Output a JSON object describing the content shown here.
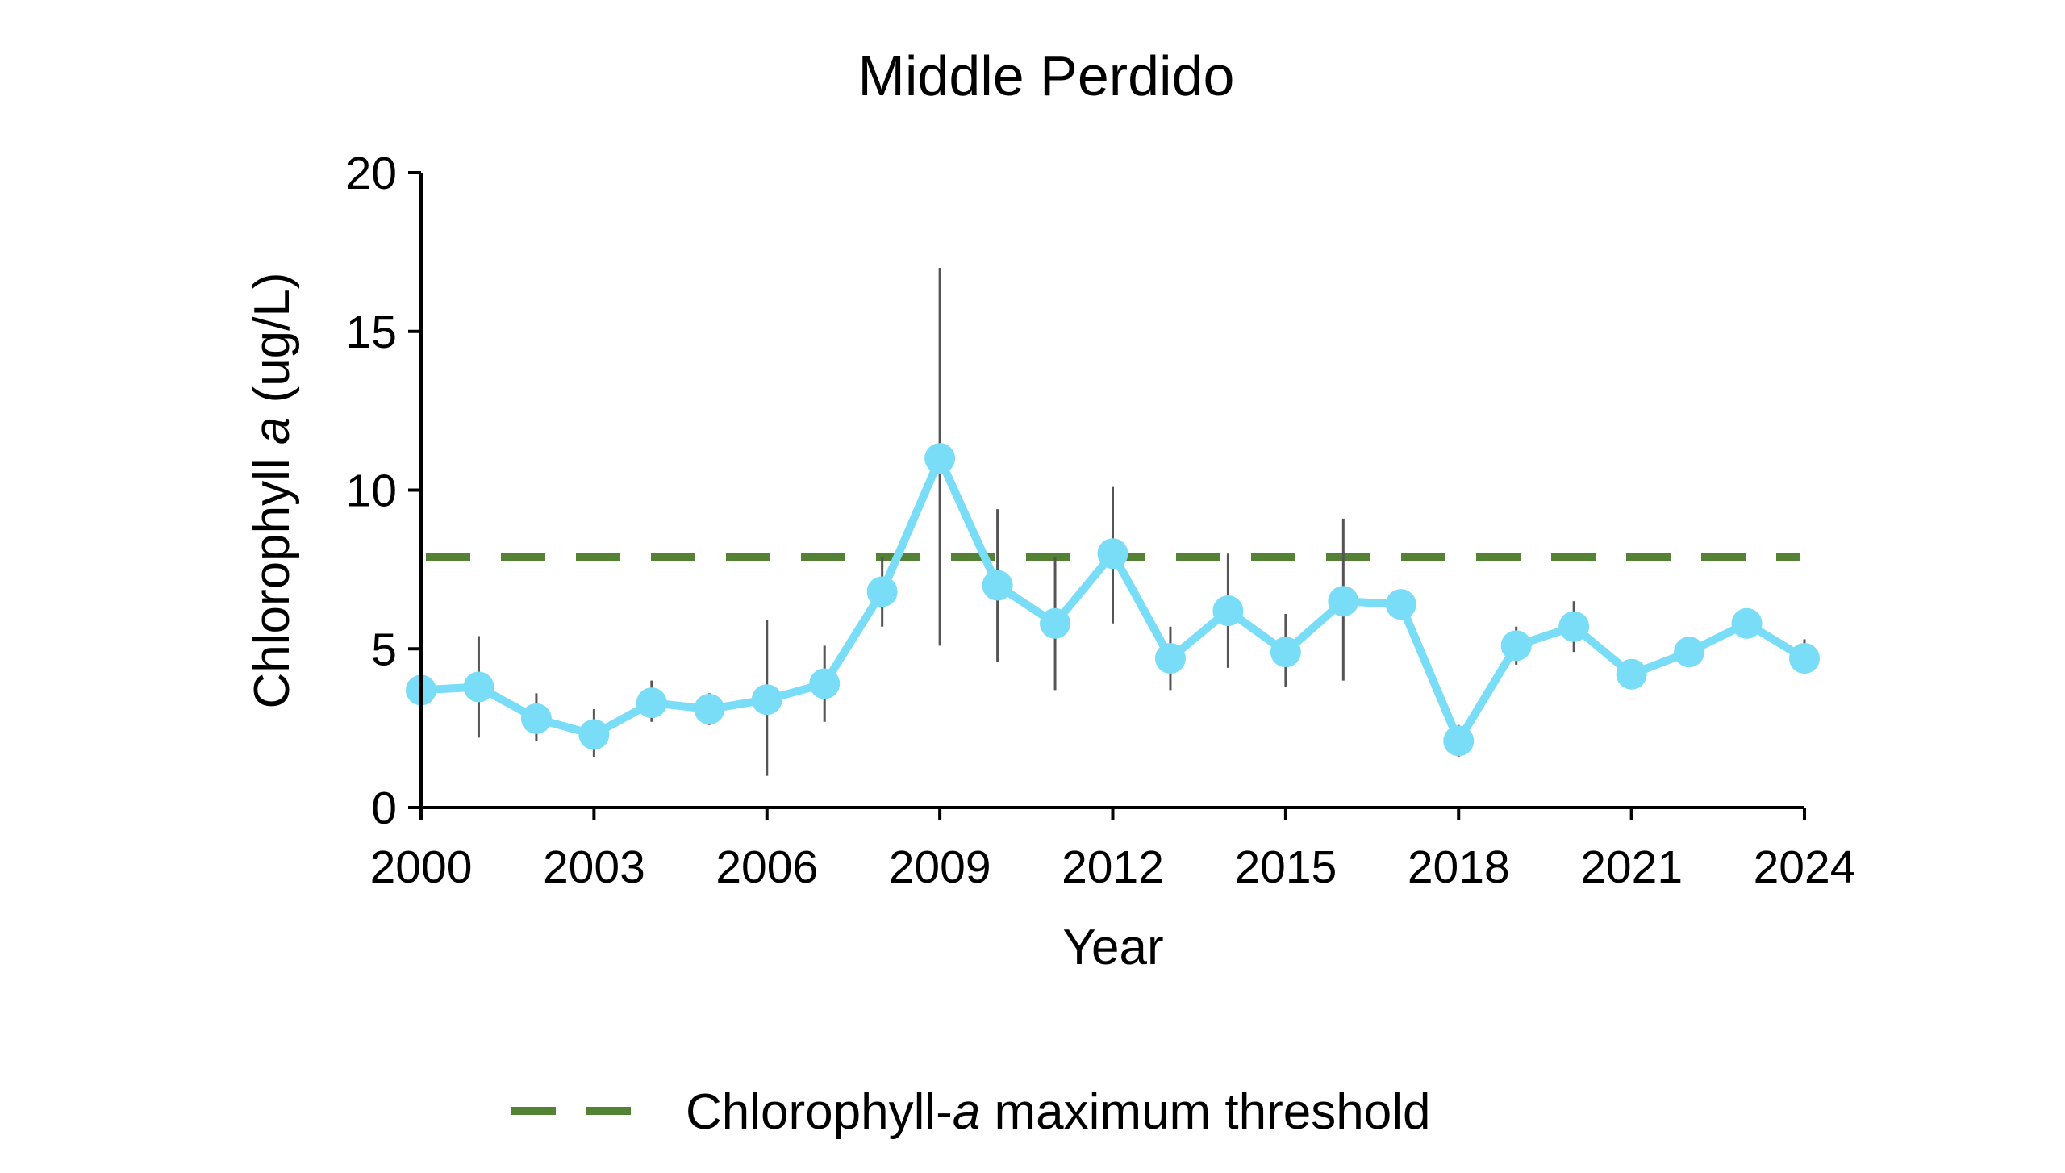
{
  "chart_data": {
    "type": "line",
    "title": "Middle Perdido",
    "xlabel": "Year",
    "ylabel_parts": [
      "Chlorophyll ",
      "a",
      " (ug/L)"
    ],
    "xlim": [
      2000,
      2024
    ],
    "ylim": [
      0,
      20
    ],
    "x_ticks": [
      2000,
      2003,
      2006,
      2009,
      2012,
      2015,
      2018,
      2021,
      2024
    ],
    "y_ticks": [
      0,
      5,
      10,
      15,
      20
    ],
    "grid": false,
    "legend": {
      "placement": "bottom-center",
      "entries": [
        {
          "label_parts": [
            "Chlorophyll-",
            "a",
            " maximum threshold"
          ]
        }
      ]
    },
    "threshold": {
      "value": 7.9,
      "color": "#548235"
    },
    "series": [
      {
        "color": "#7ADDF7",
        "points": [
          {
            "x": 2000,
            "y": 3.7,
            "low": 3.1,
            "high": 4.2
          },
          {
            "x": 2001,
            "y": 3.8,
            "low": 2.2,
            "high": 5.4
          },
          {
            "x": 2002,
            "y": 2.8,
            "low": 2.1,
            "high": 3.6
          },
          {
            "x": 2003,
            "y": 2.3,
            "low": 1.6,
            "high": 3.1
          },
          {
            "x": 2004,
            "y": 3.3,
            "low": 2.7,
            "high": 4.0
          },
          {
            "x": 2005,
            "y": 3.1,
            "low": 2.6,
            "high": 3.6
          },
          {
            "x": 2006,
            "y": 3.4,
            "low": 1.0,
            "high": 5.9
          },
          {
            "x": 2007,
            "y": 3.9,
            "low": 2.7,
            "high": 5.1
          },
          {
            "x": 2008,
            "y": 6.8,
            "low": 5.7,
            "high": 7.9
          },
          {
            "x": 2009,
            "y": 11.0,
            "low": 5.1,
            "high": 17.0
          },
          {
            "x": 2010,
            "y": 7.0,
            "low": 4.6,
            "high": 9.4
          },
          {
            "x": 2011,
            "y": 5.8,
            "low": 3.7,
            "high": 7.9
          },
          {
            "x": 2012,
            "y": 8.0,
            "low": 5.8,
            "high": 10.1
          },
          {
            "x": 2013,
            "y": 4.7,
            "low": 3.7,
            "high": 5.7
          },
          {
            "x": 2014,
            "y": 6.2,
            "low": 4.4,
            "high": 8.0
          },
          {
            "x": 2015,
            "y": 4.9,
            "low": 3.8,
            "high": 6.1
          },
          {
            "x": 2016,
            "y": 6.5,
            "low": 4.0,
            "high": 9.1
          },
          {
            "x": 2017,
            "y": 6.4,
            "low": 6.2,
            "high": 6.6
          },
          {
            "x": 2018,
            "y": 2.1,
            "low": 1.6,
            "high": 2.6
          },
          {
            "x": 2019,
            "y": 5.1,
            "low": 4.5,
            "high": 5.7
          },
          {
            "x": 2020,
            "y": 5.7,
            "low": 4.9,
            "high": 6.5
          },
          {
            "x": 2021,
            "y": 4.2,
            "low": 4.0,
            "high": 4.4
          },
          {
            "x": 2022,
            "y": 4.9,
            "low": 4.7,
            "high": 5.1
          },
          {
            "x": 2023,
            "y": 5.8,
            "low": 5.6,
            "high": 6.0
          },
          {
            "x": 2024,
            "y": 4.7,
            "low": 4.2,
            "high": 5.3
          }
        ]
      }
    ]
  }
}
